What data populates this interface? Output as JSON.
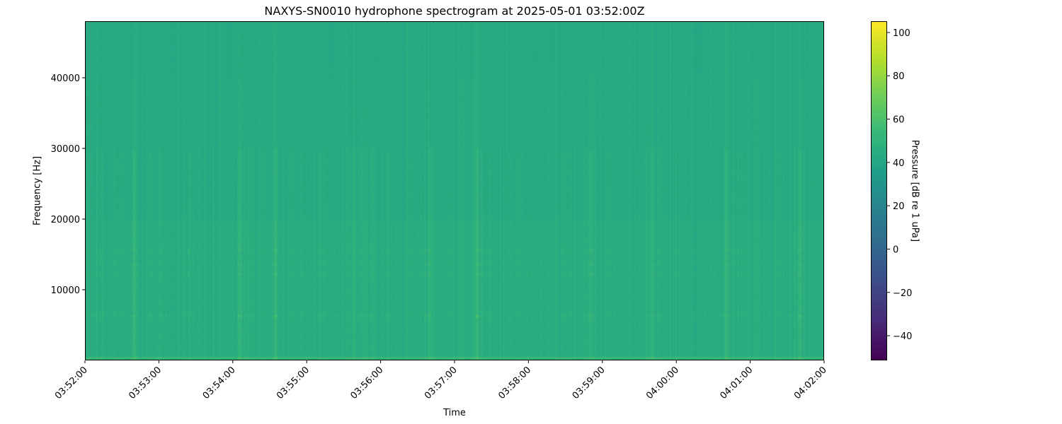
{
  "chart_data": {
    "type": "heatmap",
    "title": "NAXYS-SN0010 hydrophone spectrogram at 2025-05-01 03:52:00Z",
    "xlabel": "Time",
    "ylabel": "Frequency [Hz]",
    "colorbar_label": "Pressure [dB re 1 uPa]",
    "colormap": "viridis",
    "x_ticks": [
      "03:52:00",
      "03:53:00",
      "03:54:00",
      "03:55:00",
      "03:56:00",
      "03:57:00",
      "03:58:00",
      "03:59:00",
      "04:00:00",
      "04:01:00",
      "04:02:00"
    ],
    "x_range_minutes": [
      0,
      10
    ],
    "y_ticks": [
      10000,
      20000,
      30000,
      40000
    ],
    "ylim": [
      0,
      48000
    ],
    "colorbar_ticks": [
      -40,
      -20,
      0,
      20,
      40,
      60,
      80,
      100
    ],
    "clim": [
      -51.4,
      105.2
    ],
    "background_level_db": 43,
    "tonal_bands_hz": [
      6300,
      12300,
      13600,
      15700
    ],
    "broadband_events": [
      "03:52:40",
      "03:54:05",
      "03:54:35",
      "03:56:40",
      "03:57:18",
      "03:58:50",
      "03:59:40",
      "04:00:40",
      "04:01:40"
    ],
    "grid": false
  }
}
